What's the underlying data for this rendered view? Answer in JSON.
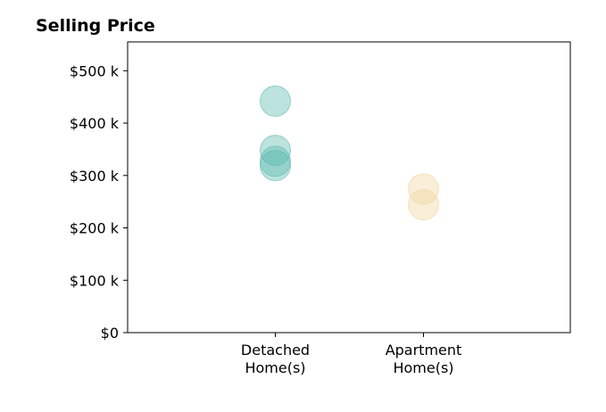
{
  "chart_data": {
    "type": "scatter",
    "title": "Selling Price",
    "xlabel": "",
    "ylabel": "",
    "categories": [
      "Detached\nHome(s)",
      "Apartment\nHome(s)"
    ],
    "ylim": [
      0,
      555
    ],
    "y_ticks": [
      0,
      100,
      200,
      300,
      400,
      500
    ],
    "y_tick_labels": [
      "$0",
      "$100 k",
      "$200 k",
      "$300 k",
      "$400 k",
      "$500 k"
    ],
    "grid": false,
    "legend": "none",
    "series": [
      {
        "category": "Detached\nHome(s)",
        "values": [
          442,
          348,
          327,
          319
        ],
        "color": "#5bb8ad"
      },
      {
        "category": "Apartment\nHome(s)",
        "values": [
          274,
          244
        ],
        "color": "#f0d49a"
      }
    ],
    "marker_opacity": 0.4
  }
}
